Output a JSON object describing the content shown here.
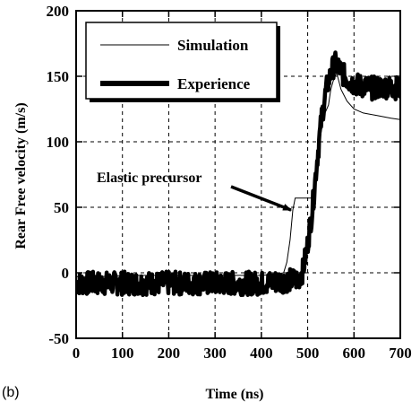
{
  "chart_data": {
    "type": "line",
    "panel_label": "(b)",
    "xlabel": "Time (ns)",
    "ylabel": "Rear Free velocity (m/s)",
    "xlim": [
      0,
      700
    ],
    "ylim": [
      -50,
      200
    ],
    "x_ticks": [
      0,
      100,
      200,
      300,
      400,
      500,
      600,
      700
    ],
    "y_ticks": [
      -50,
      0,
      50,
      100,
      150,
      200
    ],
    "grid": true,
    "legend_position": "top-left",
    "annotation": {
      "text": "Elastic precursor",
      "points_to": {
        "x": 472,
        "y": 52
      }
    },
    "series": [
      {
        "name": "Simulation",
        "style": "thin",
        "points": [
          [
            0,
            -3
          ],
          [
            50,
            -3
          ],
          [
            100,
            -2
          ],
          [
            200,
            -2
          ],
          [
            300,
            -2
          ],
          [
            400,
            -2
          ],
          [
            430,
            -1
          ],
          [
            448,
            0
          ],
          [
            455,
            8
          ],
          [
            462,
            25
          ],
          [
            468,
            48
          ],
          [
            473,
            57
          ],
          [
            480,
            57
          ],
          [
            500,
            57
          ],
          [
            510,
            57
          ],
          [
            515,
            66
          ],
          [
            520,
            83
          ],
          [
            528,
            105
          ],
          [
            535,
            120
          ],
          [
            545,
            128
          ],
          [
            550,
            140
          ],
          [
            558,
            150
          ],
          [
            563,
            152
          ],
          [
            572,
            140
          ],
          [
            585,
            131
          ],
          [
            600,
            125
          ],
          [
            620,
            122
          ],
          [
            650,
            120
          ],
          [
            680,
            118
          ],
          [
            700,
            117
          ]
        ]
      },
      {
        "name": "Experience",
        "style": "thick",
        "noise_amplitude": 9,
        "points": [
          [
            0,
            -8
          ],
          [
            100,
            -8
          ],
          [
            200,
            -8
          ],
          [
            300,
            -8
          ],
          [
            400,
            -8
          ],
          [
            480,
            -5
          ],
          [
            490,
            2
          ],
          [
            500,
            22
          ],
          [
            510,
            48
          ],
          [
            520,
            85
          ],
          [
            530,
            118
          ],
          [
            540,
            140
          ],
          [
            550,
            152
          ],
          [
            558,
            160
          ],
          [
            565,
            158
          ],
          [
            575,
            152
          ],
          [
            590,
            146
          ],
          [
            610,
            143
          ],
          [
            640,
            141
          ],
          [
            670,
            142
          ],
          [
            700,
            141
          ]
        ]
      }
    ]
  }
}
